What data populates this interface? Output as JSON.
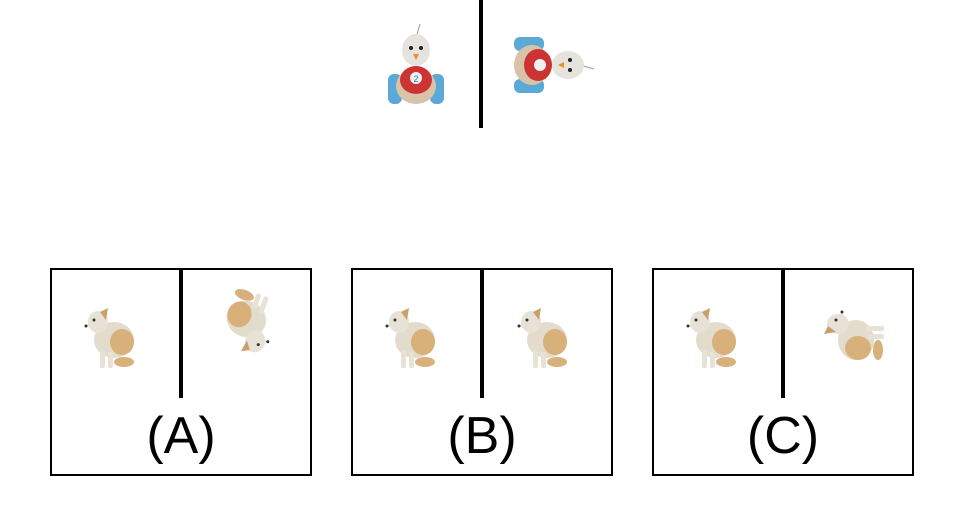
{
  "example": {
    "left_image": "toy-bird-car-upright",
    "right_image": "toy-bird-car-rotated-90-clockwise"
  },
  "options": [
    {
      "label": "(A)",
      "left_image": "dog-sitting",
      "right_image": "dog-rotated-180"
    },
    {
      "label": "(B)",
      "left_image": "dog-sitting",
      "right_image": "dog-sitting"
    },
    {
      "label": "(C)",
      "left_image": "dog-sitting",
      "right_image": "dog-rotated-90-clockwise"
    }
  ]
}
